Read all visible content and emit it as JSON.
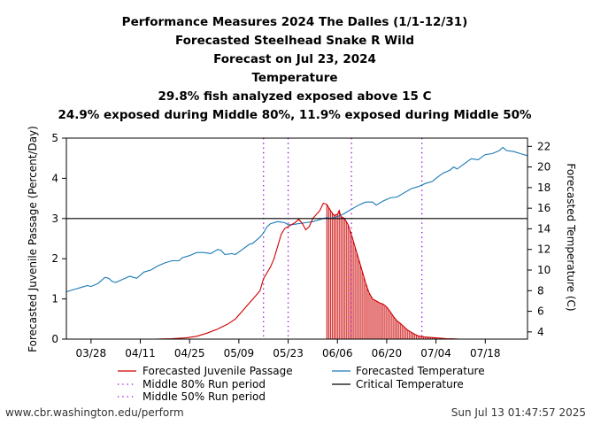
{
  "chart_data": {
    "type": "line",
    "title_lines": [
      "Performance Measures 2024 The Dalles (1/1-12/31)",
      "Forecasted Steelhead Snake R Wild",
      "Forecast on Jul 23, 2024",
      "Temperature",
      "29.8% fish analyzed exposed above 15 C",
      "24.9% exposed during Middle 80%, 11.9% exposed during Middle 50%"
    ],
    "ylabel_left": "Forecasted Juvenile Passage (Percent/Day)",
    "ylabel_right": "Forecasted Temperature (C)",
    "x_ticks": [
      "03/28",
      "04/11",
      "04/25",
      "05/09",
      "05/23",
      "06/06",
      "06/20",
      "07/04",
      "07/18"
    ],
    "x_tick_days": [
      87,
      101,
      115,
      129,
      143,
      157,
      171,
      185,
      199
    ],
    "xlim": [
      80,
      211
    ],
    "ylim_left": [
      0,
      5
    ],
    "y_ticks_left": [
      0,
      1,
      2,
      3,
      4,
      5
    ],
    "ylim_right": [
      3.3,
      22.8
    ],
    "y_ticks_right": [
      4,
      6,
      8,
      10,
      12,
      14,
      16,
      18,
      20,
      22
    ],
    "critical_temperature": 15,
    "middle_80_run_period_days": [
      136,
      181
    ],
    "middle_50_run_period_days": [
      143,
      161
    ],
    "exposed_shading_days": [
      154,
      185
    ],
    "passage_series": {
      "name": "Forecasted Juvenile Passage",
      "color": "#cc0000",
      "points": [
        [
          105,
          0
        ],
        [
          110,
          0.01
        ],
        [
          114,
          0.03
        ],
        [
          117,
          0.07
        ],
        [
          120,
          0.15
        ],
        [
          123,
          0.25
        ],
        [
          126,
          0.38
        ],
        [
          128,
          0.5
        ],
        [
          130,
          0.7
        ],
        [
          132,
          0.9
        ],
        [
          133,
          1.0
        ],
        [
          135,
          1.2
        ],
        [
          136,
          1.5
        ],
        [
          138,
          1.8
        ],
        [
          139,
          2.0
        ],
        [
          140,
          2.3
        ],
        [
          141,
          2.6
        ],
        [
          142,
          2.75
        ],
        [
          143,
          2.8
        ],
        [
          145,
          2.9
        ],
        [
          146,
          2.98
        ],
        [
          147,
          2.88
        ],
        [
          148,
          2.72
        ],
        [
          149,
          2.8
        ],
        [
          150,
          3.0
        ],
        [
          152,
          3.2
        ],
        [
          153,
          3.38
        ],
        [
          154,
          3.35
        ],
        [
          155,
          3.2
        ],
        [
          156,
          3.08
        ],
        [
          157,
          3.1
        ],
        [
          157.5,
          3.2
        ],
        [
          158,
          3.05
        ],
        [
          159,
          3.0
        ],
        [
          160,
          2.85
        ],
        [
          161,
          2.6
        ],
        [
          162,
          2.3
        ],
        [
          163,
          2.0
        ],
        [
          164,
          1.7
        ],
        [
          165,
          1.4
        ],
        [
          166,
          1.15
        ],
        [
          167,
          1.0
        ],
        [
          168,
          0.95
        ],
        [
          169,
          0.9
        ],
        [
          170,
          0.87
        ],
        [
          171,
          0.8
        ],
        [
          172,
          0.68
        ],
        [
          173,
          0.55
        ],
        [
          174,
          0.45
        ],
        [
          175,
          0.38
        ],
        [
          176,
          0.3
        ],
        [
          177,
          0.22
        ],
        [
          178,
          0.17
        ],
        [
          179,
          0.12
        ],
        [
          180,
          0.08
        ],
        [
          182,
          0.05
        ],
        [
          185,
          0.03
        ],
        [
          188,
          0.01
        ],
        [
          192,
          0
        ]
      ]
    },
    "temperature_series": {
      "name": "Forecasted Temperature",
      "color": "#1a7ab5",
      "points": [
        [
          80,
          7.9
        ],
        [
          82,
          8.1
        ],
        [
          84,
          8.3
        ],
        [
          86,
          8.5
        ],
        [
          87,
          8.4
        ],
        [
          89,
          8.7
        ],
        [
          91,
          9.3
        ],
        [
          92,
          9.2
        ],
        [
          93,
          8.9
        ],
        [
          94,
          8.8
        ],
        [
          96,
          9.1
        ],
        [
          98,
          9.4
        ],
        [
          99,
          9.3
        ],
        [
          100,
          9.2
        ],
        [
          101,
          9.5
        ],
        [
          102,
          9.8
        ],
        [
          104,
          10.0
        ],
        [
          106,
          10.4
        ],
        [
          108,
          10.7
        ],
        [
          110,
          10.9
        ],
        [
          112,
          10.9
        ],
        [
          113,
          11.2
        ],
        [
          115,
          11.4
        ],
        [
          117,
          11.7
        ],
        [
          119,
          11.7
        ],
        [
          121,
          11.6
        ],
        [
          123,
          12.0
        ],
        [
          124,
          11.9
        ],
        [
          125,
          11.5
        ],
        [
          127,
          11.6
        ],
        [
          128,
          11.5
        ],
        [
          130,
          12.0
        ],
        [
          132,
          12.5
        ],
        [
          133,
          12.6
        ],
        [
          134,
          12.9
        ],
        [
          135,
          13.2
        ],
        [
          136,
          13.6
        ],
        [
          137,
          14.2
        ],
        [
          138,
          14.5
        ],
        [
          140,
          14.7
        ],
        [
          142,
          14.6
        ],
        [
          143,
          14.4
        ],
        [
          144,
          14.4
        ],
        [
          146,
          14.5
        ],
        [
          148,
          14.6
        ],
        [
          150,
          14.7
        ],
        [
          152,
          14.9
        ],
        [
          154,
          15.1
        ],
        [
          155,
          15.0
        ],
        [
          157,
          15.2
        ],
        [
          158,
          15.3
        ],
        [
          159,
          15.5
        ],
        [
          161,
          15.9
        ],
        [
          163,
          16.3
        ],
        [
          165,
          16.6
        ],
        [
          167,
          16.6
        ],
        [
          168,
          16.3
        ],
        [
          170,
          16.7
        ],
        [
          172,
          17.0
        ],
        [
          174,
          17.1
        ],
        [
          176,
          17.5
        ],
        [
          178,
          17.9
        ],
        [
          180,
          18.1
        ],
        [
          182,
          18.4
        ],
        [
          184,
          18.6
        ],
        [
          185,
          18.9
        ],
        [
          187,
          19.4
        ],
        [
          189,
          19.7
        ],
        [
          190,
          20.0
        ],
        [
          191,
          19.8
        ],
        [
          193,
          20.3
        ],
        [
          195,
          20.8
        ],
        [
          197,
          20.7
        ],
        [
          199,
          21.2
        ],
        [
          201,
          21.3
        ],
        [
          203,
          21.6
        ],
        [
          204,
          21.9
        ],
        [
          205,
          21.6
        ],
        [
          207,
          21.5
        ],
        [
          209,
          21.3
        ],
        [
          210,
          21.2
        ],
        [
          211,
          21.1
        ]
      ]
    },
    "legend": [
      "Forecasted Juvenile Passage",
      "Forecasted Temperature",
      "Middle 80% Run period",
      "Critical Temperature",
      "Middle 50% Run period"
    ]
  },
  "footer": {
    "url": "www.cbr.washington.edu/perform",
    "timestamp": "Sun Jul 13 01:47:57 2025"
  },
  "colors": {
    "passage": "#cc0000",
    "temperature": "#1a7ab5",
    "mid80": "#9400d3",
    "mid50": "#9400d3",
    "critical": "#000000"
  }
}
